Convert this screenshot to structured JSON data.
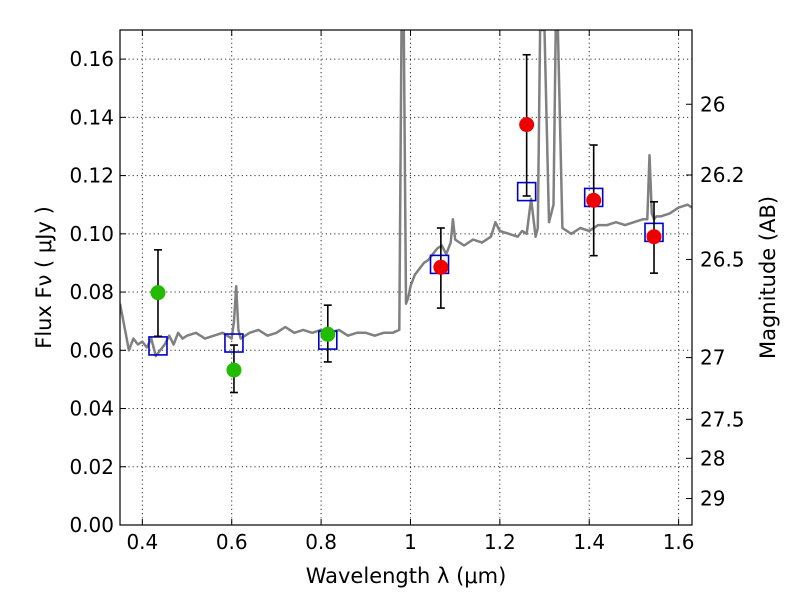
{
  "chart_data": {
    "type": "scatter",
    "xlabel": "Wavelength  λ (μm)",
    "ylabel": "Flux  Fν  ( μJy )",
    "y2label": "Magnitude (AB)",
    "xlim": [
      0.35,
      1.63
    ],
    "ylim": [
      0.0,
      0.17
    ],
    "grid": true,
    "x_ticks": [
      0.4,
      0.6,
      0.8,
      1.0,
      1.2,
      1.4,
      1.6
    ],
    "x_tick_labels": [
      "0.4",
      "0.6",
      "0.8",
      "1",
      "1.2",
      "1.4",
      "1.6"
    ],
    "y_ticks": [
      0.0,
      0.02,
      0.04,
      0.06,
      0.08,
      0.1,
      0.12,
      0.14,
      0.16
    ],
    "y_tick_labels": [
      "0.00",
      "0.02",
      "0.04",
      "0.06",
      "0.08",
      "0.10",
      "0.12",
      "0.14",
      "0.16"
    ],
    "y2_ticks": [
      {
        "label": "26",
        "flux": 0.1445
      },
      {
        "label": "26.2",
        "flux": 0.1202
      },
      {
        "label": "26.5",
        "flux": 0.0912
      },
      {
        "label": "27",
        "flux": 0.0575
      },
      {
        "label": "27.5",
        "flux": 0.0363
      },
      {
        "label": "28",
        "flux": 0.0229
      },
      {
        "label": "29",
        "flux": 0.0091
      }
    ],
    "series": [
      {
        "kind": "line",
        "color": "#808080",
        "x": [
          0.35,
          0.36,
          0.37,
          0.38,
          0.39,
          0.4,
          0.41,
          0.42,
          0.43,
          0.44,
          0.45,
          0.46,
          0.47,
          0.48,
          0.49,
          0.5,
          0.52,
          0.54,
          0.56,
          0.58,
          0.6,
          0.605,
          0.61,
          0.615,
          0.62,
          0.64,
          0.66,
          0.68,
          0.7,
          0.72,
          0.74,
          0.76,
          0.78,
          0.8,
          0.82,
          0.84,
          0.86,
          0.88,
          0.9,
          0.92,
          0.94,
          0.96,
          0.975,
          0.98,
          0.985,
          0.99,
          0.995,
          1.0,
          1.01,
          1.02,
          1.03,
          1.04,
          1.05,
          1.06,
          1.07,
          1.08,
          1.09,
          1.095,
          1.1,
          1.11,
          1.12,
          1.14,
          1.16,
          1.18,
          1.19,
          1.2,
          1.22,
          1.24,
          1.25,
          1.26,
          1.27,
          1.28,
          1.285,
          1.29,
          1.3,
          1.31,
          1.32,
          1.325,
          1.33,
          1.34,
          1.36,
          1.38,
          1.4,
          1.42,
          1.44,
          1.46,
          1.48,
          1.5,
          1.52,
          1.53,
          1.535,
          1.54,
          1.545,
          1.55,
          1.56,
          1.58,
          1.6,
          1.62,
          1.63
        ],
        "y": [
          0.076,
          0.068,
          0.06,
          0.064,
          0.062,
          0.063,
          0.061,
          0.064,
          0.058,
          0.06,
          0.062,
          0.065,
          0.062,
          0.066,
          0.064,
          0.065,
          0.066,
          0.064,
          0.065,
          0.066,
          0.064,
          0.07,
          0.082,
          0.067,
          0.064,
          0.066,
          0.067,
          0.065,
          0.066,
          0.068,
          0.066,
          0.067,
          0.066,
          0.067,
          0.066,
          0.067,
          0.065,
          0.066,
          0.066,
          0.065,
          0.066,
          0.066,
          0.067,
          0.17,
          0.17,
          0.076,
          0.078,
          0.082,
          0.086,
          0.088,
          0.09,
          0.091,
          0.093,
          0.095,
          0.096,
          0.093,
          0.097,
          0.105,
          0.098,
          0.097,
          0.096,
          0.098,
          0.097,
          0.099,
          0.104,
          0.101,
          0.1,
          0.099,
          0.101,
          0.1,
          0.112,
          0.099,
          0.102,
          0.17,
          0.17,
          0.104,
          0.11,
          0.17,
          0.17,
          0.102,
          0.1,
          0.102,
          0.101,
          0.103,
          0.103,
          0.104,
          0.103,
          0.104,
          0.105,
          0.105,
          0.127,
          0.107,
          0.105,
          0.106,
          0.106,
          0.107,
          0.109,
          0.11,
          0.109
        ]
      },
      {
        "kind": "points",
        "marker": "square",
        "color": "#0000cc",
        "x": [
          0.435,
          0.605,
          0.815,
          1.065,
          1.26,
          1.41,
          1.545
        ],
        "y": [
          0.0615,
          0.0625,
          0.0635,
          0.0895,
          0.1145,
          0.1125,
          0.1005
        ]
      },
      {
        "kind": "points",
        "marker": "circle",
        "color": "#22bb00",
        "x": [
          0.435,
          0.605,
          0.815
        ],
        "y": [
          0.0798,
          0.0532,
          0.0655
        ],
        "err_low": [
          0.0648,
          0.0455,
          0.056
        ],
        "err_high": [
          0.0945,
          0.0618,
          0.0755
        ]
      },
      {
        "kind": "points",
        "marker": "circle",
        "color": "#ee0000",
        "x": [
          1.068,
          1.26,
          1.41,
          1.545
        ],
        "y": [
          0.0885,
          0.1375,
          0.1115,
          0.099
        ],
        "err_low": [
          0.0745,
          0.113,
          0.0925,
          0.0865
        ],
        "err_high": [
          0.102,
          0.1615,
          0.1305,
          0.111
        ]
      }
    ]
  }
}
